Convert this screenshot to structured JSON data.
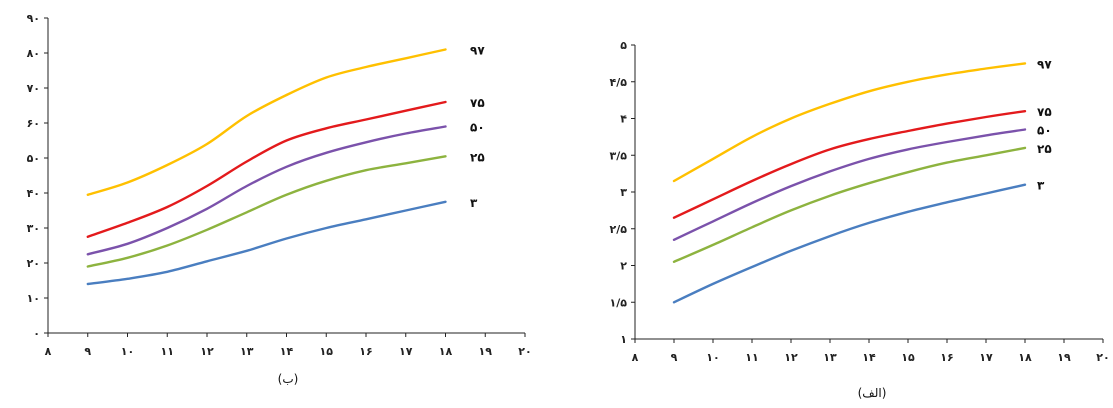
{
  "chart_data": [
    {
      "id": "b",
      "type": "line",
      "caption": "(ب)",
      "x": [
        9,
        10,
        11,
        12,
        13,
        14,
        15,
        16,
        17,
        18
      ],
      "xlim": [
        8,
        20
      ],
      "ylim": [
        0,
        90
      ],
      "xticks": [
        8,
        9,
        10,
        11,
        12,
        13,
        14,
        15,
        16,
        17,
        18,
        19,
        20
      ],
      "yticks": [
        0,
        10,
        20,
        30,
        40,
        50,
        60,
        70,
        80,
        90
      ],
      "xtick_labels": [
        "۸",
        "۹",
        "۱۰",
        "۱۱",
        "۱۲",
        "۱۳",
        "۱۴",
        "۱۵",
        "۱۶",
        "۱۷",
        "۱۸",
        "۱۹",
        "۲۰"
      ],
      "ytick_labels": [
        "۰",
        "۱۰",
        "۲۰",
        "۳۰",
        "۴۰",
        "۵۰",
        "۶۰",
        "۷۰",
        "۸۰",
        "۹۰"
      ],
      "series": [
        {
          "name": "۹۷",
          "color": "#FFC000",
          "values": [
            39.5,
            43,
            48,
            54,
            62,
            68,
            73,
            76,
            78.5,
            81
          ]
        },
        {
          "name": "۷۵",
          "color": "#E31A1C",
          "values": [
            27.5,
            31.5,
            36,
            42,
            49,
            55,
            58.5,
            61,
            63.5,
            66
          ]
        },
        {
          "name": "۵۰",
          "color": "#7B52AB",
          "values": [
            22.5,
            25.5,
            30,
            35.5,
            42,
            47.5,
            51.5,
            54.5,
            57,
            59
          ]
        },
        {
          "name": "۲۵",
          "color": "#8DB33F",
          "values": [
            19,
            21.5,
            25,
            29.5,
            34.5,
            39.5,
            43.5,
            46.5,
            48.5,
            50.5
          ]
        },
        {
          "name": "۳",
          "color": "#4A7EC0",
          "values": [
            14,
            15.5,
            17.5,
            20.5,
            23.5,
            27,
            30,
            32.5,
            35,
            37.5
          ]
        }
      ]
    },
    {
      "id": "alef",
      "type": "line",
      "caption": "(الف)",
      "x": [
        9,
        10,
        11,
        12,
        13,
        14,
        15,
        16,
        17,
        18
      ],
      "xlim": [
        8,
        20
      ],
      "ylim": [
        1,
        5
      ],
      "xticks": [
        8,
        9,
        10,
        11,
        12,
        13,
        14,
        15,
        16,
        17,
        18,
        19,
        20
      ],
      "yticks": [
        1,
        1.5,
        2,
        2.5,
        3,
        3.5,
        4,
        4.5,
        5
      ],
      "xtick_labels": [
        "۸",
        "۹",
        "۱۰",
        "۱۱",
        "۱۲",
        "۱۳",
        "۱۴",
        "۱۵",
        "۱۶",
        "۱۷",
        "۱۸",
        "۱۹",
        "۲۰"
      ],
      "ytick_labels": [
        "۱",
        "۱/۵",
        "۲",
        "۲/۵",
        "۳",
        "۳/۵",
        "۴",
        "۴/۵",
        "۵"
      ],
      "series": [
        {
          "name": "۹۷",
          "color": "#FFC000",
          "values": [
            3.15,
            3.45,
            3.75,
            4.0,
            4.2,
            4.37,
            4.5,
            4.6,
            4.68,
            4.75
          ]
        },
        {
          "name": "۷۵",
          "color": "#E31A1C",
          "values": [
            2.65,
            2.9,
            3.15,
            3.38,
            3.58,
            3.72,
            3.83,
            3.93,
            4.02,
            4.1
          ]
        },
        {
          "name": "۵۰",
          "color": "#7B52AB",
          "values": [
            2.35,
            2.6,
            2.85,
            3.08,
            3.28,
            3.45,
            3.58,
            3.68,
            3.77,
            3.85
          ]
        },
        {
          "name": "۲۵",
          "color": "#8DB33F",
          "values": [
            2.05,
            2.28,
            2.52,
            2.75,
            2.95,
            3.12,
            3.27,
            3.4,
            3.5,
            3.6
          ]
        },
        {
          "name": "۳",
          "color": "#4A7EC0",
          "values": [
            1.5,
            1.75,
            1.98,
            2.2,
            2.4,
            2.58,
            2.73,
            2.86,
            2.98,
            3.1
          ]
        }
      ]
    }
  ]
}
